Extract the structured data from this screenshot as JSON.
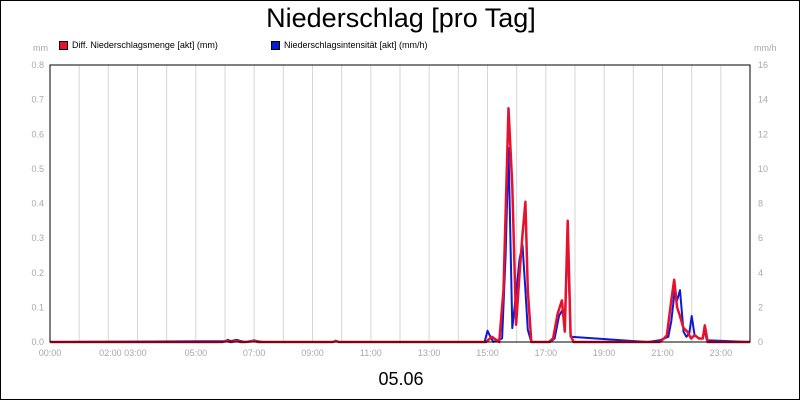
{
  "chart_data": {
    "type": "line",
    "title": "Niederschlag [pro Tag]",
    "date_label": "05.06",
    "y_left_unit": "mm",
    "y_right_unit": "mm/h",
    "x_ticks": [
      "00:00",
      "02:00 03:00",
      "05:00",
      "07:00",
      "09:00",
      "11:00",
      "13:00",
      "15:00",
      "17:00",
      "19:00",
      "21:00",
      "23:00"
    ],
    "x_tick_hours": [
      0,
      2.5,
      5,
      7,
      9,
      11,
      13,
      15,
      17,
      19,
      21,
      23
    ],
    "xlim_hours": [
      0,
      24
    ],
    "ylim_left": [
      0,
      0.8
    ],
    "ylim_right": [
      0,
      16
    ],
    "y_left_ticks": [
      "0.0",
      "0.1",
      "0.2",
      "0.3",
      "0.4",
      "0.5",
      "0.6",
      "0.7",
      "0.8"
    ],
    "y_right_ticks": [
      "0",
      "2",
      "4",
      "6",
      "8",
      "10",
      "12",
      "14",
      "16"
    ],
    "grid": "vertical",
    "legend_position": "top",
    "series": [
      {
        "name": "Diff. Niederschlagsmenge [akt] (mm)",
        "color": "#e8112d",
        "axis": "left",
        "hours": [
          0,
          5.9,
          6.05,
          6.2,
          6.4,
          6.55,
          6.7,
          7.0,
          7.15,
          7.3,
          9.7,
          9.8,
          9.9,
          14.8,
          14.95,
          15.15,
          15.4,
          15.55,
          15.72,
          15.85,
          15.98,
          16.1,
          16.2,
          16.3,
          16.38,
          16.5,
          17.1,
          17.25,
          17.4,
          17.55,
          17.65,
          17.75,
          17.85,
          17.95,
          20.5,
          20.9,
          21.05,
          21.15,
          21.3,
          21.4,
          21.5,
          21.58,
          21.72,
          21.85,
          21.98,
          22.1,
          22.25,
          22.38,
          22.45,
          22.55,
          24
        ],
        "values": [
          0,
          0,
          0.003,
          0,
          0.003,
          0,
          0,
          0.003,
          0,
          0,
          0,
          0.003,
          0,
          0,
          0,
          0.015,
          0,
          0.15,
          0.675,
          0.45,
          0.05,
          0.2,
          0.31,
          0.405,
          0.15,
          0,
          0,
          0.01,
          0.08,
          0.12,
          0.03,
          0.35,
          0.02,
          0,
          0,
          0,
          0.01,
          0.02,
          0.12,
          0.18,
          0.1,
          0.08,
          0.04,
          0.03,
          0.01,
          0.02,
          0.01,
          0.01,
          0.048,
          0,
          0
        ]
      },
      {
        "name": "Niederschlagsintensität [akt] (mm/h)",
        "color": "#0b1bd1",
        "axis": "right",
        "hours": [
          0,
          6.0,
          6.1,
          6.2,
          6.4,
          6.55,
          6.7,
          7.0,
          7.1,
          7.3,
          9.7,
          9.8,
          9.9,
          14.9,
          15.0,
          15.1,
          15.2,
          15.5,
          15.62,
          15.72,
          15.85,
          15.98,
          16.1,
          16.2,
          16.3,
          16.38,
          16.5,
          17.15,
          17.3,
          17.45,
          17.55,
          17.65,
          17.75,
          17.85,
          20.5,
          20.9,
          21.05,
          21.2,
          21.3,
          21.42,
          21.5,
          21.6,
          21.72,
          21.82,
          21.92,
          22.0,
          22.1,
          22.25,
          22.38,
          22.45,
          22.52,
          24
        ],
        "values": [
          0,
          0.05,
          0.12,
          0.05,
          0.12,
          0.05,
          0,
          0.1,
          0.05,
          0,
          0,
          0.08,
          0,
          0,
          0.65,
          0.3,
          0,
          0.2,
          5.0,
          11.2,
          0.8,
          2.8,
          4.8,
          5.6,
          3.0,
          0.7,
          0,
          0,
          0.2,
          1.5,
          1.8,
          1.2,
          6.0,
          0.3,
          0,
          0.1,
          0.2,
          0.3,
          1.2,
          3.0,
          2.4,
          3.0,
          0.6,
          0.3,
          0.5,
          1.5,
          0.4,
          0.2,
          0.2,
          0.7,
          0.1,
          0
        ]
      }
    ]
  }
}
